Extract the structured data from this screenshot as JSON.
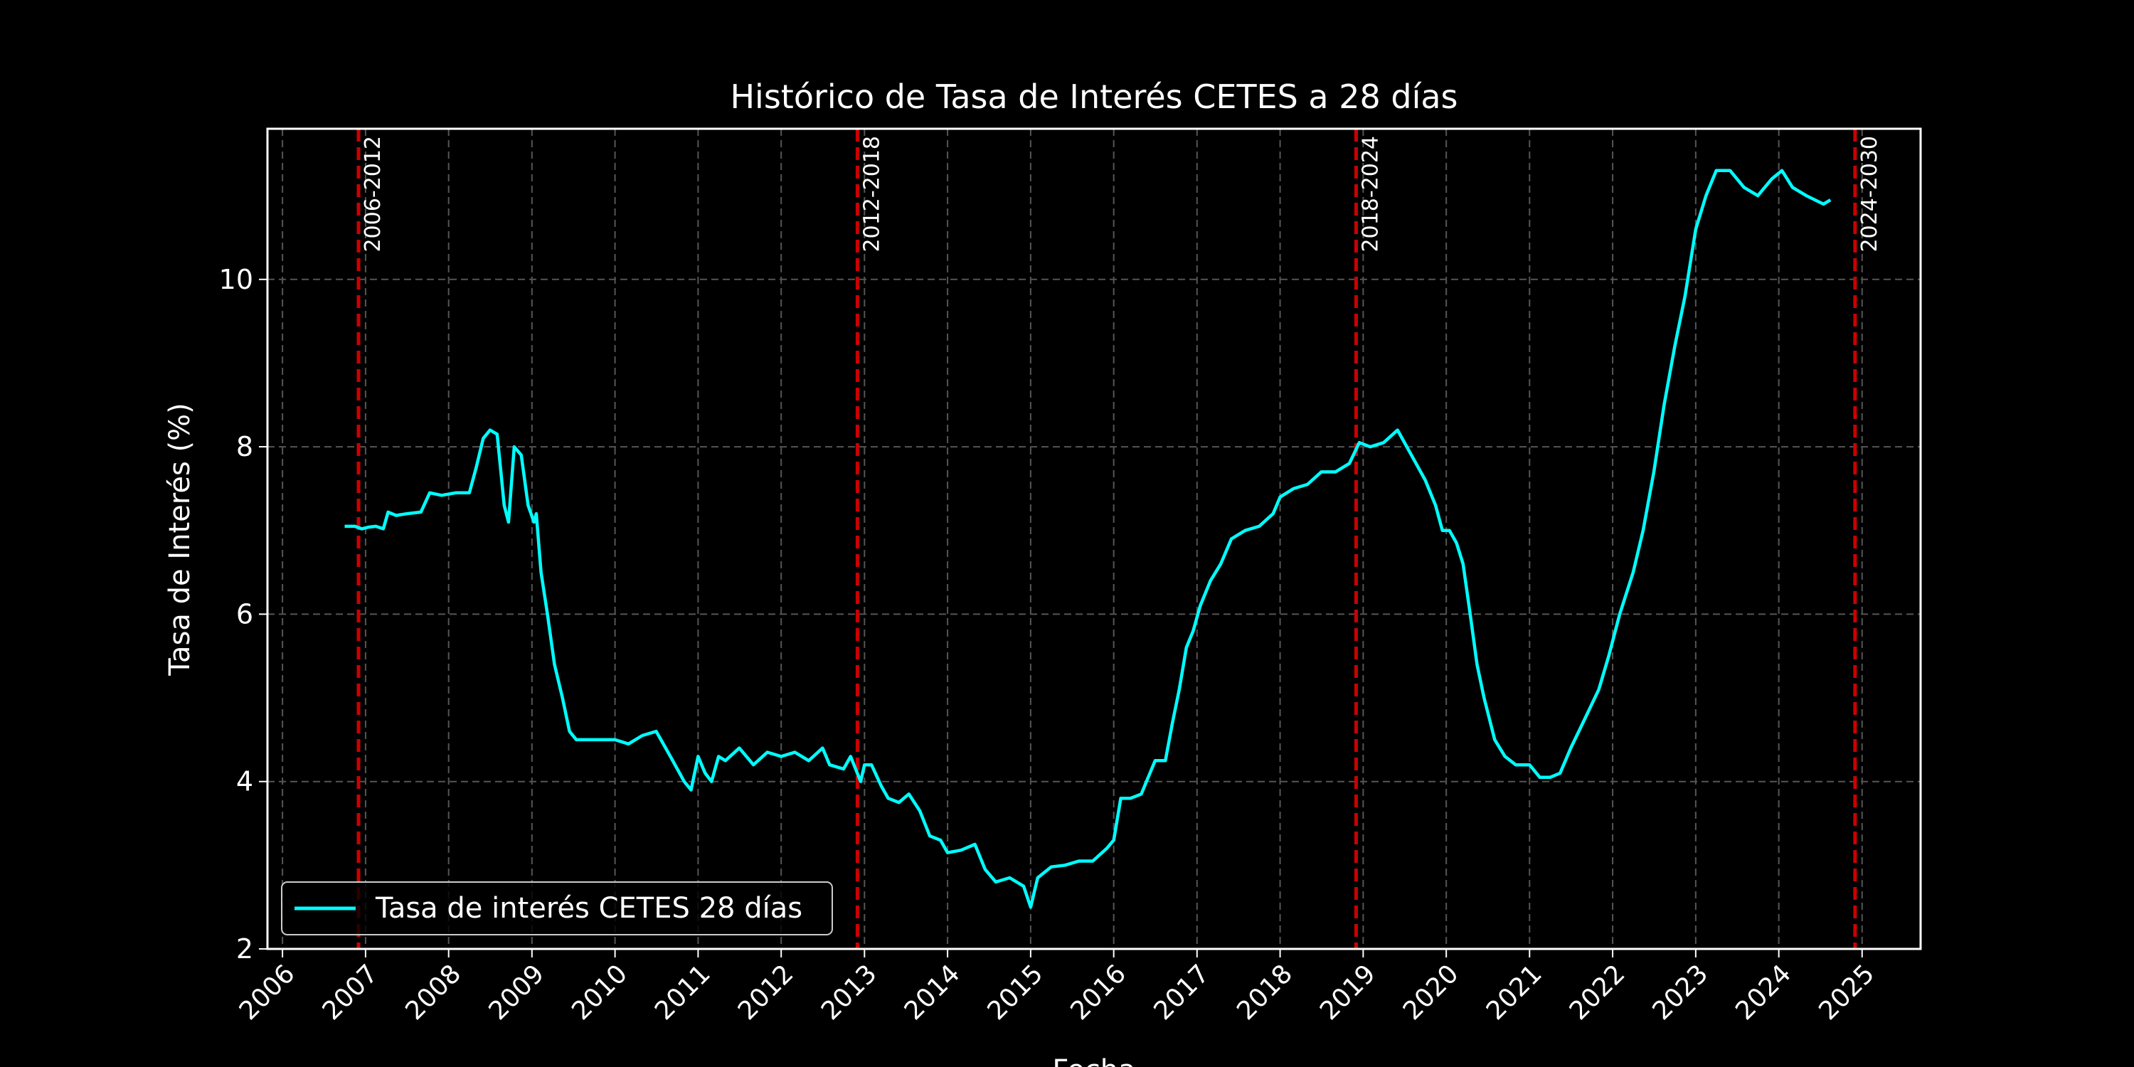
{
  "chart_data": {
    "type": "line",
    "title": "Histórico de Tasa de Interés CETES a 28 días",
    "xlabel": "Fecha",
    "ylabel": "Tasa de Interés (%)",
    "xlim": [
      "2005-10-27",
      "2025-09-15"
    ],
    "ylim": [
      2,
      11.8
    ],
    "grid": true,
    "legend_position": "lower-left",
    "colors": {
      "line": "#00ffff",
      "vline": "#cc0000",
      "grid": "#555555",
      "axes": "#ffffff",
      "background": "#000000"
    },
    "x_ticks": [
      "2006",
      "2007",
      "2008",
      "2009",
      "2010",
      "2011",
      "2012",
      "2013",
      "2014",
      "2015",
      "2016",
      "2017",
      "2018",
      "2019",
      "2020",
      "2021",
      "2022",
      "2023",
      "2024",
      "2025"
    ],
    "y_ticks": [
      "2",
      "4",
      "6",
      "8",
      "10"
    ],
    "series": [
      {
        "name": "Tasa de interés CETES 28 días",
        "color": "#00ffff",
        "points": [
          [
            "2006-10-01",
            7.05
          ],
          [
            "2006-11-15",
            7.05
          ],
          [
            "2006-12-15",
            7.02
          ],
          [
            "2007-01-15",
            7.04
          ],
          [
            "2007-02-15",
            7.05
          ],
          [
            "2007-03-20",
            7.02
          ],
          [
            "2007-04-10",
            7.22
          ],
          [
            "2007-05-15",
            7.18
          ],
          [
            "2007-07-01",
            7.2
          ],
          [
            "2007-09-01",
            7.22
          ],
          [
            "2007-10-10",
            7.45
          ],
          [
            "2007-12-01",
            7.42
          ],
          [
            "2008-02-01",
            7.45
          ],
          [
            "2008-04-01",
            7.45
          ],
          [
            "2008-05-01",
            7.75
          ],
          [
            "2008-06-01",
            8.1
          ],
          [
            "2008-07-01",
            8.2
          ],
          [
            "2008-08-01",
            8.15
          ],
          [
            "2008-09-01",
            7.3
          ],
          [
            "2008-09-20",
            7.1
          ],
          [
            "2008-10-15",
            8.0
          ],
          [
            "2008-11-15",
            7.9
          ],
          [
            "2008-12-15",
            7.3
          ],
          [
            "2009-01-10",
            7.1
          ],
          [
            "2009-01-20",
            7.2
          ],
          [
            "2009-02-10",
            6.5
          ],
          [
            "2009-03-10",
            6.0
          ],
          [
            "2009-04-10",
            5.4
          ],
          [
            "2009-05-15",
            5.0
          ],
          [
            "2009-06-15",
            4.6
          ],
          [
            "2009-07-15",
            4.5
          ],
          [
            "2009-09-01",
            4.5
          ],
          [
            "2009-11-01",
            4.5
          ],
          [
            "2010-01-01",
            4.5
          ],
          [
            "2010-03-01",
            4.45
          ],
          [
            "2010-05-01",
            4.55
          ],
          [
            "2010-07-01",
            4.6
          ],
          [
            "2010-09-01",
            4.3
          ],
          [
            "2010-11-01",
            4.0
          ],
          [
            "2010-12-01",
            3.9
          ],
          [
            "2011-01-01",
            4.3
          ],
          [
            "2011-02-01",
            4.1
          ],
          [
            "2011-03-01",
            4.0
          ],
          [
            "2011-04-01",
            4.3
          ],
          [
            "2011-05-01",
            4.25
          ],
          [
            "2011-07-01",
            4.4
          ],
          [
            "2011-09-01",
            4.2
          ],
          [
            "2011-11-01",
            4.35
          ],
          [
            "2012-01-01",
            4.3
          ],
          [
            "2012-03-01",
            4.35
          ],
          [
            "2012-05-01",
            4.25
          ],
          [
            "2012-07-01",
            4.4
          ],
          [
            "2012-08-01",
            4.2
          ],
          [
            "2012-10-01",
            4.15
          ],
          [
            "2012-11-01",
            4.3
          ],
          [
            "2012-12-15",
            4.0
          ],
          [
            "2013-01-01",
            4.2
          ],
          [
            "2013-02-01",
            4.2
          ],
          [
            "2013-03-15",
            3.95
          ],
          [
            "2013-04-15",
            3.8
          ],
          [
            "2013-06-01",
            3.75
          ],
          [
            "2013-07-15",
            3.85
          ],
          [
            "2013-09-01",
            3.65
          ],
          [
            "2013-10-15",
            3.35
          ],
          [
            "2013-12-01",
            3.3
          ],
          [
            "2014-01-01",
            3.15
          ],
          [
            "2014-03-01",
            3.18
          ],
          [
            "2014-05-01",
            3.25
          ],
          [
            "2014-06-15",
            2.95
          ],
          [
            "2014-08-01",
            2.8
          ],
          [
            "2014-10-01",
            2.85
          ],
          [
            "2014-12-01",
            2.75
          ],
          [
            "2015-01-01",
            2.5
          ],
          [
            "2015-02-01",
            2.85
          ],
          [
            "2015-04-01",
            2.98
          ],
          [
            "2015-06-01",
            3.0
          ],
          [
            "2015-08-01",
            3.05
          ],
          [
            "2015-10-01",
            3.05
          ],
          [
            "2015-12-01",
            3.2
          ],
          [
            "2016-01-01",
            3.3
          ],
          [
            "2016-02-01",
            3.8
          ],
          [
            "2016-03-15",
            3.8
          ],
          [
            "2016-05-01",
            3.85
          ],
          [
            "2016-07-01",
            4.25
          ],
          [
            "2016-08-15",
            4.25
          ],
          [
            "2016-09-15",
            4.7
          ],
          [
            "2016-10-15",
            5.1
          ],
          [
            "2016-11-15",
            5.6
          ],
          [
            "2016-12-15",
            5.8
          ],
          [
            "2017-01-15",
            6.1
          ],
          [
            "2017-03-01",
            6.4
          ],
          [
            "2017-04-15",
            6.6
          ],
          [
            "2017-06-01",
            6.9
          ],
          [
            "2017-08-01",
            7.0
          ],
          [
            "2017-10-01",
            7.05
          ],
          [
            "2017-12-01",
            7.2
          ],
          [
            "2018-01-01",
            7.4
          ],
          [
            "2018-03-01",
            7.5
          ],
          [
            "2018-05-01",
            7.55
          ],
          [
            "2018-07-01",
            7.7
          ],
          [
            "2018-09-01",
            7.7
          ],
          [
            "2018-11-01",
            7.8
          ],
          [
            "2018-12-15",
            8.05
          ],
          [
            "2019-02-01",
            8.0
          ],
          [
            "2019-04-01",
            8.05
          ],
          [
            "2019-06-01",
            8.2
          ],
          [
            "2019-08-01",
            7.9
          ],
          [
            "2019-10-01",
            7.6
          ],
          [
            "2019-11-15",
            7.3
          ],
          [
            "2019-12-15",
            7.0
          ],
          [
            "2020-01-15",
            7.0
          ],
          [
            "2020-02-15",
            6.85
          ],
          [
            "2020-03-15",
            6.6
          ],
          [
            "2020-04-15",
            6.0
          ],
          [
            "2020-05-15",
            5.4
          ],
          [
            "2020-06-15",
            5.0
          ],
          [
            "2020-08-01",
            4.5
          ],
          [
            "2020-09-15",
            4.3
          ],
          [
            "2020-11-01",
            4.2
          ],
          [
            "2021-01-01",
            4.2
          ],
          [
            "2021-02-15",
            4.05
          ],
          [
            "2021-04-01",
            4.05
          ],
          [
            "2021-05-15",
            4.1
          ],
          [
            "2021-07-01",
            4.4
          ],
          [
            "2021-09-01",
            4.75
          ],
          [
            "2021-11-01",
            5.1
          ],
          [
            "2021-12-15",
            5.5
          ],
          [
            "2022-02-01",
            6.0
          ],
          [
            "2022-04-01",
            6.5
          ],
          [
            "2022-05-15",
            7.0
          ],
          [
            "2022-07-01",
            7.7
          ],
          [
            "2022-08-15",
            8.5
          ],
          [
            "2022-10-01",
            9.2
          ],
          [
            "2022-11-15",
            9.8
          ],
          [
            "2023-01-01",
            10.6
          ],
          [
            "2023-02-15",
            11.0
          ],
          [
            "2023-04-01",
            11.3
          ],
          [
            "2023-06-01",
            11.3
          ],
          [
            "2023-08-01",
            11.1
          ],
          [
            "2023-10-01",
            11.0
          ],
          [
            "2023-12-01",
            11.2
          ],
          [
            "2024-01-15",
            11.3
          ],
          [
            "2024-03-01",
            11.1
          ],
          [
            "2024-05-01",
            11.0
          ],
          [
            "2024-07-15",
            10.9
          ],
          [
            "2024-08-15",
            10.95
          ]
        ]
      }
    ],
    "vlines": [
      {
        "date": "2006-12-01",
        "label": "2006-2012"
      },
      {
        "date": "2012-12-01",
        "label": "2012-2018"
      },
      {
        "date": "2018-12-01",
        "label": "2018-2024"
      },
      {
        "date": "2024-12-01",
        "label": "2024-2030"
      }
    ]
  }
}
